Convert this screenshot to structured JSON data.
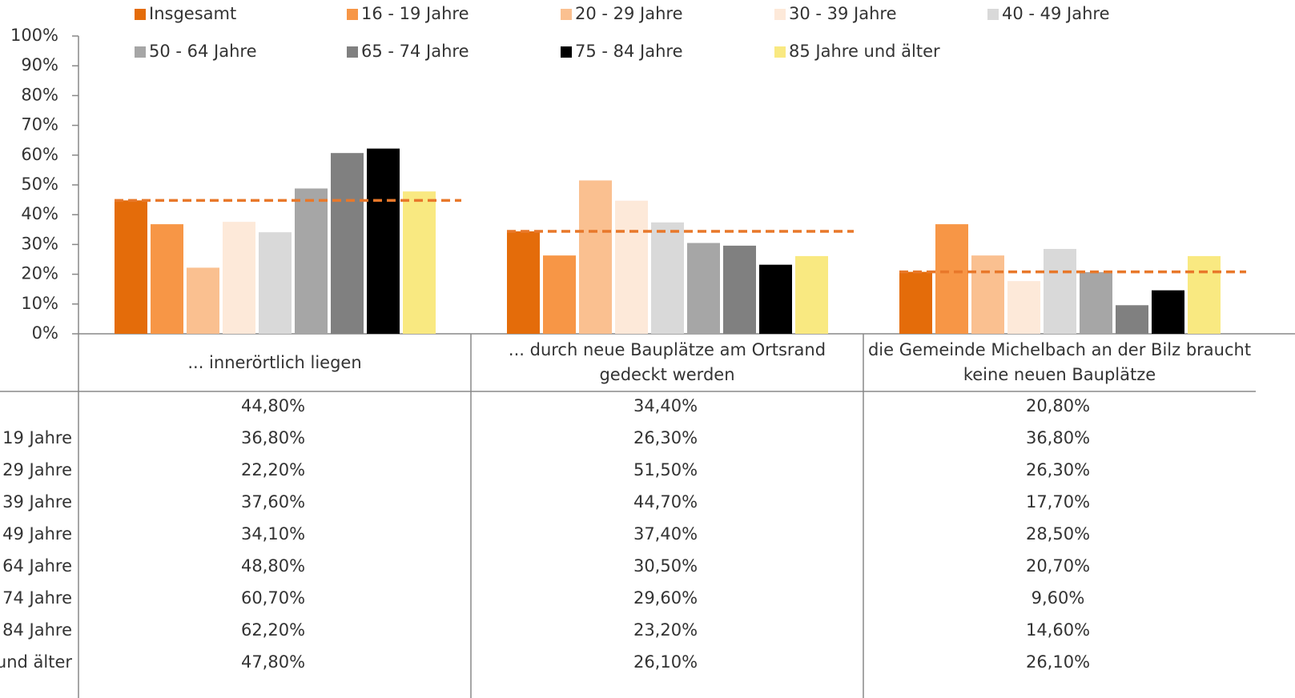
{
  "chart_data": {
    "type": "bar",
    "categories": [
      "... innerörtlich liegen",
      "... durch neue Bauplätze am Ortsrand gedeckt werden",
      "die Gemeinde Michelbach an der Bilz braucht keine neuen Bauplätze"
    ],
    "series": [
      {
        "name": "Insgesamt",
        "color": "#e46c0a",
        "values": [
          44.8,
          34.4,
          20.8
        ],
        "value_labels": [
          "44,80%",
          "34,40%",
          "20,80%"
        ]
      },
      {
        "name": "16 - 19 Jahre",
        "color": "#f79646",
        "values": [
          36.8,
          26.3,
          36.8
        ],
        "value_labels": [
          "36,80%",
          "26,30%",
          "36,80%"
        ]
      },
      {
        "name": "20 - 29 Jahre",
        "color": "#fac090",
        "values": [
          22.2,
          51.5,
          26.3
        ],
        "value_labels": [
          "22,20%",
          "51,50%",
          "26,30%"
        ]
      },
      {
        "name": "30 - 39 Jahre",
        "color": "#fde9d9",
        "values": [
          37.6,
          44.7,
          17.7
        ],
        "value_labels": [
          "37,60%",
          "44,70%",
          "17,70%"
        ]
      },
      {
        "name": "40 - 49 Jahre",
        "color": "#d9d9d9",
        "values": [
          34.1,
          37.4,
          28.5
        ],
        "value_labels": [
          "34,10%",
          "37,40%",
          "28,50%"
        ]
      },
      {
        "name": "50 - 64 Jahre",
        "color": "#a6a6a6",
        "values": [
          48.8,
          30.5,
          20.7
        ],
        "value_labels": [
          "48,80%",
          "30,50%",
          "20,70%"
        ]
      },
      {
        "name": "65 - 74 Jahre",
        "color": "#808080",
        "values": [
          60.7,
          29.6,
          9.6
        ],
        "value_labels": [
          "60,70%",
          "29,60%",
          "9,60%"
        ]
      },
      {
        "name": "75 - 84 Jahre",
        "color": "#000000",
        "values": [
          62.2,
          23.2,
          14.6
        ],
        "value_labels": [
          "62,20%",
          "23,20%",
          "14,60%"
        ]
      },
      {
        "name": "85 Jahre und älter",
        "color": "#f9e981",
        "values": [
          47.8,
          26.1,
          26.1
        ],
        "value_labels": [
          "47,80%",
          "26,10%",
          "26,10%"
        ]
      }
    ],
    "ylim": [
      0,
      100
    ],
    "yticks": [
      {
        "value": 0,
        "label": "0%"
      },
      {
        "value": 10,
        "label": "10%"
      },
      {
        "value": 20,
        "label": "20%"
      },
      {
        "value": 30,
        "label": "30%"
      },
      {
        "value": 40,
        "label": "40%"
      },
      {
        "value": 50,
        "label": "50%"
      },
      {
        "value": 60,
        "label": "60%"
      },
      {
        "value": 70,
        "label": "70%"
      },
      {
        "value": 80,
        "label": "80%"
      },
      {
        "value": 90,
        "label": "90%"
      },
      {
        "value": 100,
        "label": "100%"
      }
    ],
    "legend": "top",
    "grid": false
  }
}
